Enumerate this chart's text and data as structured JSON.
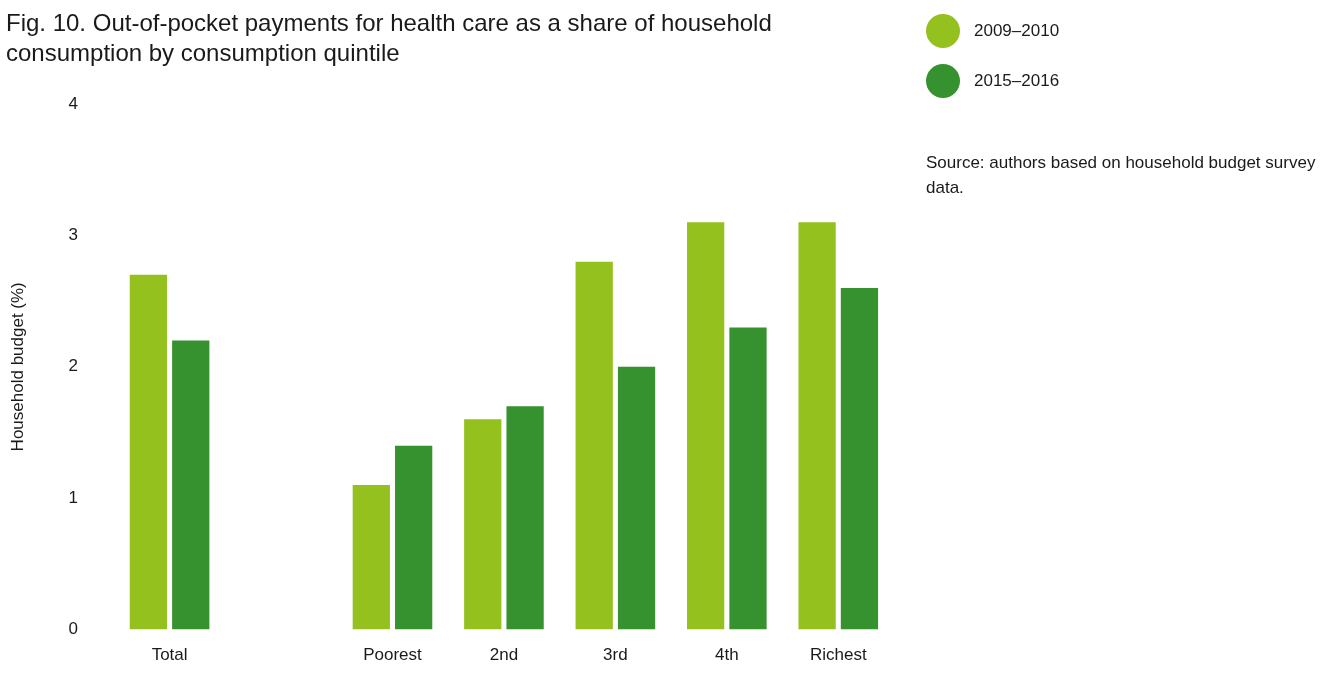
{
  "chart_data": {
    "type": "bar",
    "title": "Fig. 10. Out-of-pocket payments for health care as a share of household consumption by consumption quintile",
    "ylabel": "Household budget (%)",
    "categories": [
      "Total",
      null,
      "Poorest",
      "2nd",
      "3rd",
      "4th",
      "Richest"
    ],
    "series": [
      {
        "name": "2009–2010",
        "color": "#95c11f",
        "values": [
          2.7,
          null,
          1.1,
          1.6,
          2.8,
          3.1,
          3.1
        ]
      },
      {
        "name": "2015–2016",
        "color": "#36912f",
        "values": [
          2.2,
          null,
          1.4,
          1.7,
          2.0,
          2.3,
          2.6
        ]
      }
    ],
    "ylim": [
      0,
      4
    ],
    "yticks": [
      0,
      1,
      2,
      3,
      4
    ],
    "grid": false,
    "legend": "top right",
    "annotations": [
      "Source: authors based on household budget survey data."
    ]
  }
}
